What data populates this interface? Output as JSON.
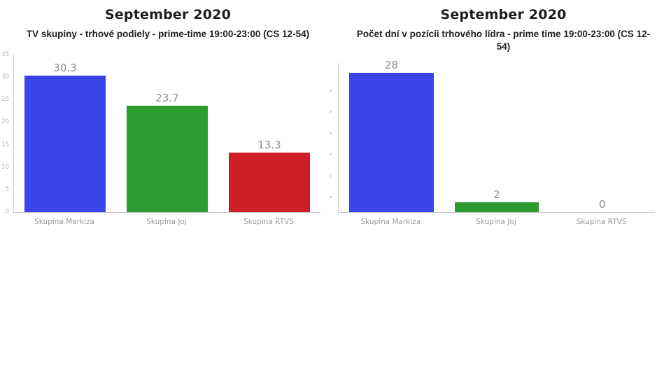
{
  "page": {
    "background": "#ffffff"
  },
  "colors": {
    "axis": "#c9c9c9",
    "value_label": "#8f8f8f",
    "tick_label": "#b4b4b4",
    "category_label": "#9b9b9b",
    "title": "#1c1c1c",
    "bar_blue": "#3b45ec",
    "bar_green": "#2d9b30",
    "bar_red": "#ce1e28"
  },
  "chart_data": [
    {
      "type": "bar",
      "title": "September 2020",
      "subtitle": "TV skupiny - trhové podiely - prime-time 19:00-23:00 (CS 12-54)",
      "categories": [
        "Skupina Markiza",
        "Skupina Joj",
        "Skupina RTVS"
      ],
      "values": [
        30.3,
        23.7,
        13.3
      ],
      "value_labels": [
        "30.3",
        "23.7",
        "13.3"
      ],
      "bar_colors": [
        "#3b45ec",
        "#2d9b30",
        "#ce1e28"
      ],
      "ylim": [
        0,
        35
      ],
      "yticks": [
        0,
        5,
        10,
        15,
        20,
        25,
        30,
        35
      ],
      "grid": false,
      "legend": null,
      "xlabel": "",
      "ylabel": ""
    },
    {
      "type": "bar",
      "title": "September 2020",
      "subtitle": "Počet dní v pozícii trhového lídra - prime time 19:00-23:00 (CS 12-54)",
      "categories": [
        "Skupina Markiza",
        "Skupina Joj",
        "Skupina RTVS"
      ],
      "values": [
        28,
        2,
        0
      ],
      "value_labels": [
        "28",
        "2",
        "0"
      ],
      "bar_colors": [
        "#3b45ec",
        "#2d9b30",
        "#ce1e28"
      ],
      "ylim": [
        0,
        30
      ],
      "yticks": [],
      "ytick_marks_unlabeled": 6,
      "grid": false,
      "legend": null,
      "xlabel": "",
      "ylabel": ""
    }
  ]
}
